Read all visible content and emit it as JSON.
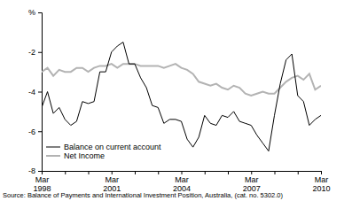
{
  "chart_data": {
    "type": "line",
    "y_label": "%",
    "source": "Source: Balance of Payments and International Investment Position, Australia, (cat. no. 5302.0)",
    "categories": [
      "Mar 1998",
      null,
      null,
      null,
      null,
      null,
      null,
      null,
      null,
      null,
      null,
      null,
      "Mar 2001",
      null,
      null,
      null,
      null,
      null,
      null,
      null,
      null,
      null,
      null,
      null,
      "Mar 2004",
      null,
      null,
      null,
      null,
      null,
      null,
      null,
      null,
      null,
      null,
      null,
      "Mar 2007",
      null,
      null,
      null,
      null,
      null,
      null,
      null,
      null,
      null,
      null,
      null,
      "Mar 2010"
    ],
    "series": [
      {
        "name": "Balance on current account",
        "color": "#000000",
        "values": [
          -4.8,
          -4.0,
          -5.1,
          -4.8,
          -5.4,
          -5.7,
          -5.5,
          -4.5,
          -4.6,
          -4.5,
          -3.0,
          -3.0,
          -2.0,
          -1.7,
          -1.5,
          -2.6,
          -2.6,
          -3.3,
          -3.8,
          -4.7,
          -4.8,
          -5.6,
          -5.4,
          -5.4,
          -5.5,
          -6.4,
          -6.8,
          -6.3,
          -5.2,
          -5.6,
          -5.7,
          -5.2,
          -5.3,
          -5.0,
          -5.5,
          -5.6,
          -5.7,
          -6.2,
          -6.6,
          -7.0,
          -5.2,
          -3.6,
          -2.4,
          -2.1,
          -4.2,
          -4.5,
          -5.7,
          -5.4,
          -5.2
        ]
      },
      {
        "name": "Net Income",
        "color": "#b3b3b3",
        "values": [
          -3.0,
          -2.8,
          -3.2,
          -2.9,
          -3.0,
          -3.0,
          -2.8,
          -2.8,
          -3.0,
          -2.8,
          -2.7,
          -2.7,
          -2.6,
          -2.8,
          -2.6,
          -2.6,
          -2.6,
          -2.7,
          -2.7,
          -2.7,
          -2.7,
          -2.8,
          -2.7,
          -2.6,
          -2.8,
          -2.9,
          -3.1,
          -3.5,
          -3.6,
          -3.7,
          -3.6,
          -3.8,
          -3.9,
          -3.7,
          -3.8,
          -4.1,
          -4.2,
          -4.1,
          -4.0,
          -4.1,
          -4.1,
          -3.8,
          -3.5,
          -3.3,
          -3.2,
          -3.4,
          -3.1,
          -3.9,
          -3.7
        ]
      }
    ],
    "ylim": [
      -8,
      0
    ],
    "yticks": [
      -8,
      -6,
      -4,
      -2
    ],
    "grid": false,
    "legend": "lower left"
  }
}
